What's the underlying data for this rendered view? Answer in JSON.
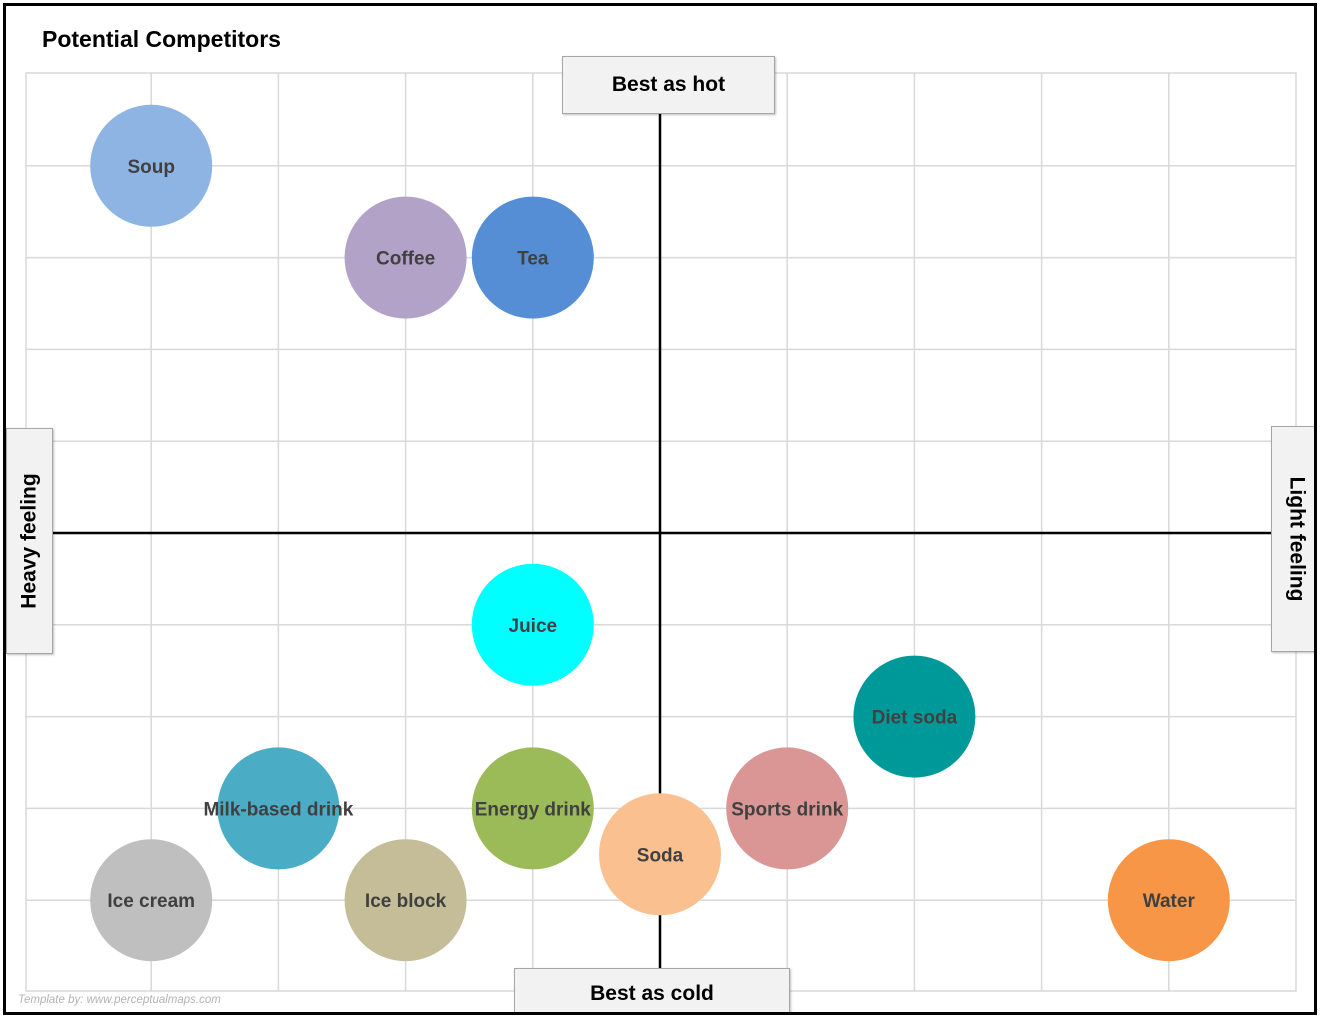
{
  "chart_data": {
    "type": "scatter",
    "title": "Potential Competitors",
    "axes": {
      "top_label": "Best as hot",
      "bottom_label": "Best as cold",
      "left_label": "Heavy feeling",
      "right_label": "Light feeling"
    },
    "xlim": [
      -5,
      5
    ],
    "ylim": [
      -5,
      5
    ],
    "grid": true,
    "points": [
      {
        "label": "Soup",
        "x": -4,
        "y": 4,
        "color": "#8eb4e3"
      },
      {
        "label": "Coffee",
        "x": -2,
        "y": 3,
        "color": "#b3a2c7"
      },
      {
        "label": "Tea",
        "x": -1,
        "y": 3,
        "color": "#558ed5"
      },
      {
        "label": "Juice",
        "x": -1,
        "y": -1,
        "color": "#00ffff"
      },
      {
        "label": "Diet soda",
        "x": 2,
        "y": -2,
        "color": "#009999"
      },
      {
        "label": "Milk-based drink",
        "x": -3,
        "y": -3,
        "color": "#4bacc6"
      },
      {
        "label": "Energy drink",
        "x": -1,
        "y": -3,
        "color": "#9bbb59"
      },
      {
        "label": "Sports drink",
        "x": 1,
        "y": -3,
        "color": "#d99694"
      },
      {
        "label": "Soda",
        "x": 0,
        "y": -3.5,
        "color": "#fac090"
      },
      {
        "label": "Ice cream",
        "x": -4,
        "y": -4,
        "color": "#bfbfbf"
      },
      {
        "label": "Ice block",
        "x": -2,
        "y": -4,
        "color": "#c4bd97"
      },
      {
        "label": "Water",
        "x": 4,
        "y": -4,
        "color": "#f79646"
      }
    ]
  },
  "credit": "Template by: www.perceptualmaps.com"
}
